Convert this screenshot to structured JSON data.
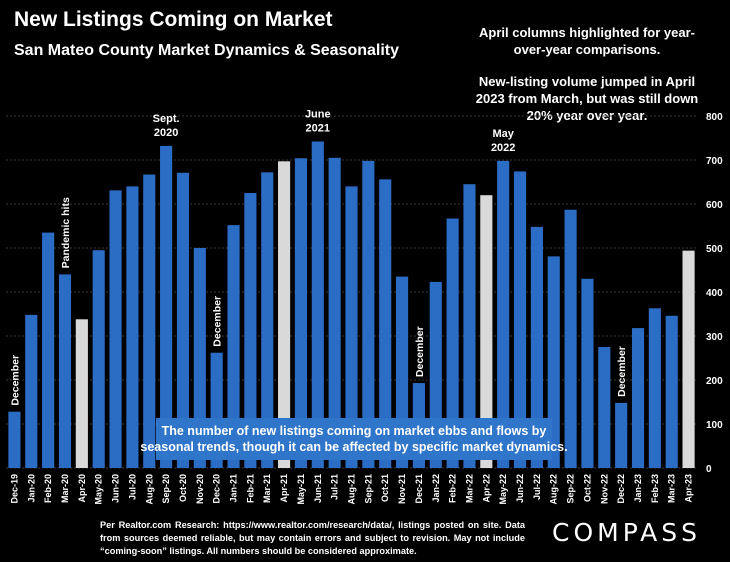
{
  "title": "New Listings Coming on Market",
  "subtitle": "San Mateo County Market Dynamics & Seasonality",
  "note_top": "April columns highlighted for year-over-year comparisons.",
  "note_bottom": "New-listing volume jumped in April 2023 from March, but was still down 20% year over year.",
  "caption": "The number of new listings coming on market ebbs and flows by seasonal trends, though it can be affected by specific market dynamics.",
  "source": "Per Realtor.com Research: https://www.realtor.com/research/data/, listings posted on site. Data from sources deemed reliable, but may contain errors and subject to revision. May not include “coming-soon” listings. All numbers should be considered approximate.",
  "logo": "COMPASS",
  "colors": {
    "bar": "#2b6cc4",
    "highlight": "#d9d9d9",
    "caption_bg": "#2f75c9",
    "grid": "#3a3a3a"
  },
  "chart_data": {
    "type": "bar",
    "title": "New Listings Coming on Market",
    "categories": [
      "Dec-19",
      "Jan-20",
      "Feb-20",
      "Mar-20",
      "Apr-20",
      "May-20",
      "Jun-20",
      "Jul-20",
      "Aug-20",
      "Sep-20",
      "Oct-20",
      "Nov-20",
      "Dec-20",
      "Jan-21",
      "Feb-21",
      "Mar-21",
      "Apr-21",
      "May-21",
      "Jun-21",
      "Jul-21",
      "Aug-21",
      "Sep-21",
      "Oct-21",
      "Nov-21",
      "Dec-21",
      "Jan-22",
      "Feb-22",
      "Mar-22",
      "Apr-22",
      "May-22",
      "Jun-22",
      "Jul-22",
      "Aug-22",
      "Sep-22",
      "Oct-22",
      "Nov-22",
      "Dec-22",
      "Jan-23",
      "Feb-23",
      "Mar-23",
      "Apr-23"
    ],
    "values": [
      128,
      348,
      535,
      440,
      338,
      495,
      631,
      640,
      667,
      732,
      671,
      500,
      262,
      552,
      625,
      672,
      697,
      704,
      742,
      705,
      640,
      698,
      656,
      435,
      193,
      423,
      567,
      645,
      620,
      698,
      674,
      548,
      481,
      587,
      430,
      275,
      148,
      318,
      363,
      346,
      494
    ],
    "highlight_categories": [
      "Apr-20",
      "Apr-21",
      "Apr-22",
      "Apr-23"
    ],
    "ylim": [
      0,
      800
    ],
    "yticks": [
      0,
      100,
      200,
      300,
      400,
      500,
      600,
      700,
      800
    ],
    "grid": true,
    "annotations": [
      {
        "text": "December",
        "category": "Dec-19",
        "orientation": "vertical"
      },
      {
        "text": "Pandemic hits",
        "category": "Mar-20",
        "orientation": "vertical"
      },
      {
        "text": "Sept. 2020",
        "category": "Sep-20",
        "orientation": "horizontal"
      },
      {
        "text": "December",
        "category": "Dec-20",
        "orientation": "vertical"
      },
      {
        "text": "June 2021",
        "category": "Jun-21",
        "orientation": "horizontal"
      },
      {
        "text": "December",
        "category": "Dec-21",
        "orientation": "vertical"
      },
      {
        "text": "May 2022",
        "category": "May-22",
        "orientation": "horizontal"
      },
      {
        "text": "December",
        "category": "Dec-22",
        "orientation": "vertical"
      }
    ]
  }
}
